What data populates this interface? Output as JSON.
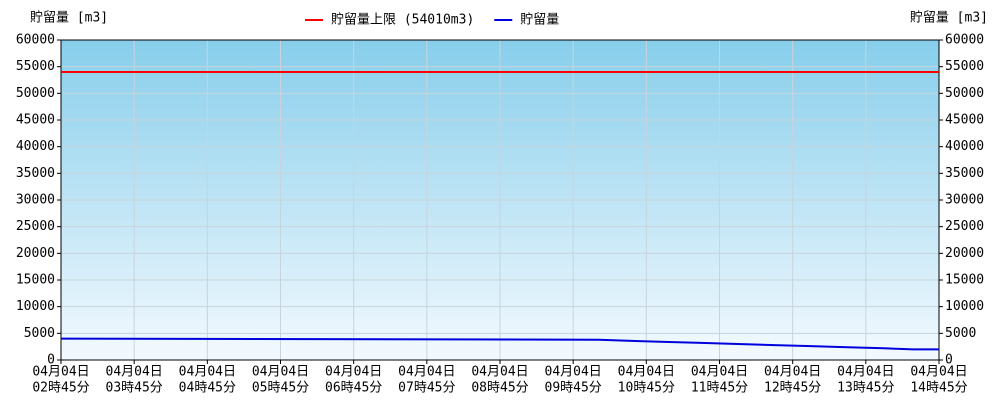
{
  "chart_data": {
    "type": "line",
    "y_label": "貯留量 [m3]",
    "y2_label": "貯留量 [m3]",
    "xlim": [
      2.75,
      14.75
    ],
    "xticks": [
      {
        "value": 2.75,
        "label": [
          "04月04日",
          "02時45分"
        ]
      },
      {
        "value": 3.75,
        "label": [
          "04月04日",
          "03時45分"
        ]
      },
      {
        "value": 4.75,
        "label": [
          "04月04日",
          "04時45分"
        ]
      },
      {
        "value": 5.75,
        "label": [
          "04月04日",
          "05時45分"
        ]
      },
      {
        "value": 6.75,
        "label": [
          "04月04日",
          "06時45分"
        ]
      },
      {
        "value": 7.75,
        "label": [
          "04月04日",
          "07時45分"
        ]
      },
      {
        "value": 8.75,
        "label": [
          "04月04日",
          "08時45分"
        ]
      },
      {
        "value": 9.75,
        "label": [
          "04月04日",
          "09時45分"
        ]
      },
      {
        "value": 10.75,
        "label": [
          "04月04日",
          "10時45分"
        ]
      },
      {
        "value": 11.75,
        "label": [
          "04月04日",
          "11時45分"
        ]
      },
      {
        "value": 12.75,
        "label": [
          "04月04日",
          "12時45分"
        ]
      },
      {
        "value": 13.75,
        "label": [
          "04月04日",
          "13時45分"
        ]
      },
      {
        "value": 14.75,
        "label": [
          "04月04日",
          "14時45分"
        ]
      }
    ],
    "ylim": [
      0,
      60000
    ],
    "yticks": [
      0,
      5000,
      10000,
      15000,
      20000,
      25000,
      30000,
      35000,
      40000,
      45000,
      50000,
      55000,
      60000
    ],
    "y2lim": [
      0,
      60000
    ],
    "y2ticks": [
      0,
      5000,
      10000,
      15000,
      20000,
      25000,
      30000,
      35000,
      40000,
      45000,
      50000,
      55000,
      60000
    ],
    "grid": true,
    "legend": "top",
    "series": [
      {
        "name": "貯留量上限 (54010m3)",
        "color": "#ff0000",
        "x": [
          2.75,
          14.75
        ],
        "values": [
          54010,
          54010
        ]
      },
      {
        "name": "貯留量",
        "color": "#0000dd",
        "x": [
          2.75,
          10.1,
          10.5,
          11.0,
          11.5,
          12.0,
          12.5,
          13.0,
          13.5,
          14.0,
          14.4,
          14.75
        ],
        "values": [
          4000,
          3800,
          3600,
          3400,
          3200,
          3000,
          2800,
          2600,
          2400,
          2200,
          2000,
          2000
        ]
      }
    ]
  }
}
